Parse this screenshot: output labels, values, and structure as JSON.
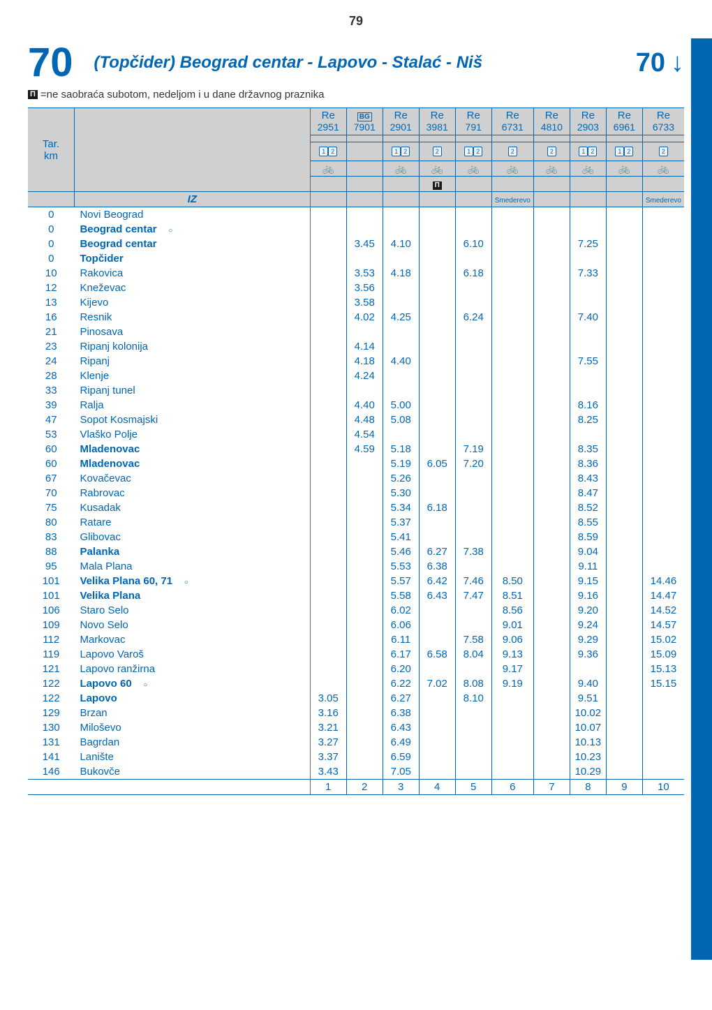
{
  "page_number": "79",
  "route_number": "70",
  "route_title_prefix": "(Topčider) ",
  "route_title_main": "Beograd centar - Lapovo - Stalać - Niš",
  "legend_text": "=ne saobraća subotom, nedeljom i u dane državnog praznika",
  "tar_label": "Tar.\nkm",
  "iz_label": "IZ",
  "columns": [
    {
      "type": "Re",
      "num": "2951",
      "class": "12",
      "bike": true,
      "bg": false
    },
    {
      "type": "",
      "num": "7901",
      "class": "",
      "bike": false,
      "bg": true
    },
    {
      "type": "Re",
      "num": "2901",
      "class": "12",
      "bike": true,
      "bg": false
    },
    {
      "type": "Re",
      "num": "3981",
      "class": "2",
      "bike": true,
      "bg": false,
      "note": true
    },
    {
      "type": "Re",
      "num": "791",
      "class": "12",
      "bike": true,
      "bg": false
    },
    {
      "type": "Re",
      "num": "6731",
      "class": "2",
      "bike": true,
      "bg": false,
      "smederevo": true
    },
    {
      "type": "Re",
      "num": "4810",
      "class": "2",
      "bike": true,
      "bg": false
    },
    {
      "type": "Re",
      "num": "2903",
      "class": "12",
      "bike": true,
      "bg": false
    },
    {
      "type": "Re",
      "num": "6961",
      "class": "12",
      "bike": true,
      "bg": false
    },
    {
      "type": "Re",
      "num": "6733",
      "class": "2",
      "bike": true,
      "bg": false,
      "smederevo": true
    }
  ],
  "smederevo_label": "Smederevo",
  "rows": [
    {
      "tar": "0",
      "st": "Novi Beograd",
      "cells": [
        "",
        "",
        "",
        "",
        "",
        "",
        "",
        "",
        "",
        ""
      ]
    },
    {
      "tar": "0",
      "st": "Beograd centar",
      "bold": true,
      "circle": true,
      "cells": [
        "",
        "",
        "",
        "",
        "",
        "",
        "",
        "",
        "",
        ""
      ],
      "thickb": true
    },
    {
      "tar": "0",
      "st": "Beograd centar",
      "bold": true,
      "cells": [
        "",
        "3.45",
        "4.10",
        "",
        "6.10",
        "",
        "",
        "7.25",
        "",
        ""
      ],
      "thickt": true
    },
    {
      "tar": "0",
      "st": "Topčider",
      "bold": true,
      "cells": [
        "",
        "",
        "",
        "",
        "",
        "",
        "",
        "",
        "",
        ""
      ]
    },
    {
      "tar": "10",
      "st": "Rakovica",
      "cells": [
        "",
        "3.53",
        "4.18",
        "",
        "6.18",
        "",
        "",
        "7.33",
        "",
        ""
      ]
    },
    {
      "tar": "12",
      "st": "Kneževac",
      "cells": [
        "",
        "3.56",
        "",
        "",
        "",
        "",
        "",
        "",
        "",
        ""
      ]
    },
    {
      "tar": "13",
      "st": "Kijevo",
      "cells": [
        "",
        "3.58",
        "",
        "",
        "",
        "",
        "",
        "",
        "",
        ""
      ]
    },
    {
      "tar": "16",
      "st": "Resnik",
      "cells": [
        "",
        "4.02",
        "4.25",
        "",
        "6.24",
        "",
        "",
        "7.40",
        "",
        ""
      ]
    },
    {
      "tar": "21",
      "st": "Pinosava",
      "cells": [
        "",
        "",
        "",
        "",
        "",
        "",
        "",
        "",
        "",
        ""
      ]
    },
    {
      "tar": "23",
      "st": "Ripanj kolonija",
      "cells": [
        "",
        "4.14",
        "",
        "",
        "",
        "",
        "",
        "",
        "",
        ""
      ]
    },
    {
      "tar": "24",
      "st": "Ripanj",
      "cells": [
        "",
        "4.18",
        "4.40",
        "",
        "",
        "",
        "",
        "7.55",
        "",
        ""
      ]
    },
    {
      "tar": "28",
      "st": "Klenje",
      "cells": [
        "",
        "4.24",
        "",
        "",
        "",
        "",
        "",
        "",
        "",
        ""
      ]
    },
    {
      "tar": "33",
      "st": "Ripanj tunel",
      "cells": [
        "",
        "",
        "",
        "",
        "",
        "",
        "",
        "",
        "",
        ""
      ]
    },
    {
      "tar": "39",
      "st": "Ralja",
      "cells": [
        "",
        "4.40",
        "5.00",
        "",
        "",
        "",
        "",
        "8.16",
        "",
        ""
      ]
    },
    {
      "tar": "47",
      "st": "Sopot Kosmajski",
      "cells": [
        "",
        "4.48",
        "5.08",
        "",
        "",
        "",
        "",
        "8.25",
        "",
        ""
      ]
    },
    {
      "tar": "53",
      "st": "Vlaško Polje",
      "cells": [
        "",
        "4.54",
        "",
        "",
        "",
        "",
        "",
        "",
        "",
        ""
      ]
    },
    {
      "tar": "60",
      "st": "Mladenovac",
      "bold": true,
      "cells": [
        "",
        "4.59",
        "5.18",
        "",
        "7.19",
        "",
        "",
        "8.35",
        "",
        ""
      ],
      "thickb": true
    },
    {
      "tar": "60",
      "st": "Mladenovac",
      "bold": true,
      "cells": [
        "",
        "",
        "5.19",
        "6.05",
        "7.20",
        "",
        "",
        "8.36",
        "",
        ""
      ],
      "thickt": true
    },
    {
      "tar": "67",
      "st": "Kovačevac",
      "cells": [
        "",
        "",
        "5.26",
        "",
        "",
        "",
        "",
        "8.43",
        "",
        ""
      ]
    },
    {
      "tar": "70",
      "st": "Rabrovac",
      "cells": [
        "",
        "",
        "5.30",
        "",
        "",
        "",
        "",
        "8.47",
        "",
        ""
      ]
    },
    {
      "tar": "75",
      "st": "Kusadak",
      "cells": [
        "",
        "",
        "5.34",
        "6.18",
        "",
        "",
        "",
        "8.52",
        "",
        ""
      ]
    },
    {
      "tar": "80",
      "st": "Ratare",
      "cells": [
        "",
        "",
        "5.37",
        "",
        "",
        "",
        "",
        "8.55",
        "",
        ""
      ]
    },
    {
      "tar": "83",
      "st": "Glibovac",
      "cells": [
        "",
        "",
        "5.41",
        "",
        "",
        "",
        "",
        "8.59",
        "",
        ""
      ]
    },
    {
      "tar": "88",
      "st": "Palanka",
      "bold": true,
      "cells": [
        "",
        "",
        "5.46",
        "6.27",
        "7.38",
        "",
        "",
        "9.04",
        "",
        ""
      ]
    },
    {
      "tar": "95",
      "st": "Mala Plana",
      "cells": [
        "",
        "",
        "5.53",
        "6.38",
        "",
        "",
        "",
        "9.11",
        "",
        ""
      ]
    },
    {
      "tar": "101",
      "st": "Velika Plana 60, 71",
      "bold": true,
      "circle": true,
      "cells": [
        "",
        "",
        "5.57",
        "6.42",
        "7.46",
        "8.50",
        "",
        "9.15",
        "",
        "14.46"
      ],
      "thickb": true
    },
    {
      "tar": "101",
      "st": "Velika Plana",
      "bold": true,
      "cells": [
        "",
        "",
        "5.58",
        "6.43",
        "7.47",
        "8.51",
        "",
        "9.16",
        "",
        "14.47"
      ],
      "thickt": true
    },
    {
      "tar": "106",
      "st": "Staro Selo",
      "cells": [
        "",
        "",
        "6.02",
        "",
        "",
        "8.56",
        "",
        "9.20",
        "",
        "14.52"
      ]
    },
    {
      "tar": "109",
      "st": "Novo Selo",
      "cells": [
        "",
        "",
        "6.06",
        "",
        "",
        "9.01",
        "",
        "9.24",
        "",
        "14.57"
      ]
    },
    {
      "tar": "112",
      "st": "Markovac",
      "cells": [
        "",
        "",
        "6.11",
        "",
        "7.58",
        "9.06",
        "",
        "9.29",
        "",
        "15.02"
      ]
    },
    {
      "tar": "119",
      "st": "Lapovo Varoš",
      "cells": [
        "",
        "",
        "6.17",
        "6.58",
        "8.04",
        "9.13",
        "",
        "9.36",
        "",
        "15.09"
      ]
    },
    {
      "tar": "121",
      "st": "Lapovo ranžirna",
      "cells": [
        "",
        "",
        "6.20",
        "",
        "",
        "9.17",
        "",
        "",
        "",
        "15.13"
      ]
    },
    {
      "tar": "122",
      "st": "Lapovo 60",
      "bold": true,
      "circle": true,
      "cells": [
        "",
        "",
        "6.22",
        "7.02",
        "8.08",
        "9.19",
        "",
        "9.40",
        "",
        "15.15"
      ],
      "thickb": true
    },
    {
      "tar": "122",
      "st": "Lapovo",
      "bold": true,
      "cells": [
        "3.05",
        "",
        "6.27",
        "",
        "8.10",
        "",
        "",
        "9.51",
        "",
        ""
      ],
      "thickt": true
    },
    {
      "tar": "129",
      "st": "Brzan",
      "cells": [
        "3.16",
        "",
        "6.38",
        "",
        "",
        "",
        "",
        "10.02",
        "",
        ""
      ]
    },
    {
      "tar": "130",
      "st": "Miloševo",
      "cells": [
        "3.21",
        "",
        "6.43",
        "",
        "",
        "",
        "",
        "10.07",
        "",
        ""
      ]
    },
    {
      "tar": "131",
      "st": "Bagrdan",
      "cells": [
        "3.27",
        "",
        "6.49",
        "",
        "",
        "",
        "",
        "10.13",
        "",
        ""
      ]
    },
    {
      "tar": "141",
      "st": "Lanište",
      "cells": [
        "3.37",
        "",
        "6.59",
        "",
        "",
        "",
        "",
        "10.23",
        "",
        ""
      ]
    },
    {
      "tar": "146",
      "st": "Bukovče",
      "cells": [
        "3.43",
        "",
        "7.05",
        "",
        "",
        "",
        "",
        "10.29",
        "",
        ""
      ],
      "thickb": true
    }
  ],
  "footer_nums": [
    "1",
    "2",
    "3",
    "4",
    "5",
    "6",
    "7",
    "8",
    "9",
    "10"
  ]
}
